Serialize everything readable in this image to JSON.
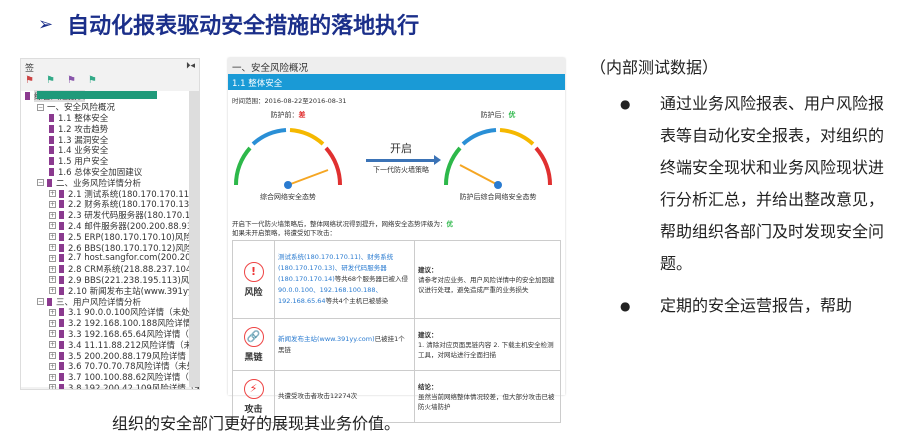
{
  "title": "自动化报表驱动安全措施的落地执行",
  "bookmarks": {
    "header": "签",
    "items": [
      {
        "label": "综合风险报表",
        "level": 0,
        "type": "root"
      },
      {
        "label": "一、安全风险概况",
        "level": 1,
        "type": "section"
      },
      {
        "label": "1.1 整体安全",
        "level": 2
      },
      {
        "label": "1.2 攻击趋势",
        "level": 2
      },
      {
        "label": "1.3 漏洞安全",
        "level": 2
      },
      {
        "label": "1.4 业务安全",
        "level": 2
      },
      {
        "label": "1.5 用户安全",
        "level": 2
      },
      {
        "label": "1.6 总体安全加固建议",
        "level": 2
      },
      {
        "label": "二、业务风险详情分析",
        "level": 1,
        "type": "section"
      },
      {
        "label": "2.1 测试系统(180.170.170.11)风险详情",
        "level": 2,
        "plus": true
      },
      {
        "label": "2.2 财务系统(180.170.170.13)风险详情",
        "level": 2,
        "plus": true
      },
      {
        "label": "2.3 研发代码服务器(180.170.170.14)风",
        "level": 2,
        "plus": true
      },
      {
        "label": "2.4 邮件服务器(200.200.88.93)风险详情",
        "level": 2,
        "plus": true
      },
      {
        "label": "2.5 ERP(180.170.170.10)风险详情（未",
        "level": 2,
        "plus": true
      },
      {
        "label": "2.6 BBS(180.170.170.12)风险详情（未",
        "level": 2,
        "plus": true
      },
      {
        "label": "2.7 host.sangfor.com(200.200.88.134",
        "level": 2,
        "plus": true
      },
      {
        "label": "2.8 CRM系统(218.88.237.104)风险详情",
        "level": 2,
        "plus": true
      },
      {
        "label": "2.9 BBS(221.238.195.113)风险详情（",
        "level": 2,
        "plus": true
      },
      {
        "label": "2.10 新闻发布主站(www.391yy.com)风",
        "level": 2,
        "plus": true
      },
      {
        "label": "三、用户风险详情分析",
        "level": 1,
        "type": "section"
      },
      {
        "label": "3.1 90.0.0.100风险详情（未处理）",
        "level": 2,
        "plus": true
      },
      {
        "label": "3.2 192.168.100.188风险详情（未处理",
        "level": 2,
        "plus": true
      },
      {
        "label": "3.3 192.168.65.64风险详情（未处理）",
        "level": 2,
        "plus": true
      },
      {
        "label": "3.4 11.11.88.212风险详情（未处理）",
        "level": 2,
        "plus": true
      },
      {
        "label": "3.5 200.200.88.179风险详情（未处理）",
        "level": 2,
        "plus": true
      },
      {
        "label": "3.6 70.70.70.78风险详情（未处理）",
        "level": 2,
        "plus": true
      },
      {
        "label": "3.7 100.100.88.62风险详情（未处理）",
        "level": 2,
        "plus": true
      },
      {
        "label": "3.8 192.200.42.109风险详情（未处理）",
        "level": 2,
        "plus": true
      },
      {
        "label": "3.9 66.55.62.117风险详情（未处理）",
        "level": 2,
        "plus": true
      }
    ]
  },
  "report": {
    "section": "一、安全风险概况",
    "subsection": "1.1 整体安全",
    "time_range": "时间范围：2016-08-22至2016-08-31",
    "gauge_before": {
      "label": "防护前：",
      "grade": "差",
      "grade_color": "#e03030",
      "caption": "综合网络安全态势",
      "segments": [
        "优",
        "良",
        "中",
        "差"
      ]
    },
    "gauge_after": {
      "label": "防护后：",
      "grade": "优",
      "grade_color": "#2db84a",
      "caption": "防护后综合网络安全态势",
      "segments": [
        "优",
        "良",
        "中",
        "差"
      ]
    },
    "arrow": {
      "big": "开启",
      "small": "下一代防火墙策略"
    },
    "summary1": "开启下一代防火墙策略后，整体网络状况得到提升，网络安全态势评级为：",
    "summary1_grade": "优",
    "summary2": "如果未开启策略，将遭受如下攻击：",
    "rows": [
      {
        "icon": "!",
        "name": "风险",
        "detail_link": "测试系统(180.170.170.11)、财务系统(180.170.170.13)、研发代码服务器(180.170.170.14)",
        "detail_text": "等共68个服务器已被入侵",
        "detail_link2": "90.0.0.100、192.168.100.188、192.168.65.64",
        "detail_text2": "等共4个主机已被感染",
        "advice_title": "建议：",
        "advice": "请参考对应业务、用户风险详情中的安全加固建议进行处理，避免造成严重的业务损失"
      },
      {
        "icon": "🔗",
        "name": "黑链",
        "detail_link": "新闻发布主站(www.391yy.com)",
        "detail_text": "已被挂1个黑链",
        "detail_link2": "",
        "detail_text2": "",
        "advice_title": "建议：",
        "advice": "1. 清除对应页面黑链内容 2. 下载主机安全检测工具，对网站进行全面扫描"
      },
      {
        "icon": "⚡",
        "name": "攻击",
        "detail_link": "",
        "detail_text": "共遭受攻击者攻击12274次",
        "detail_link2": "",
        "detail_text2": "",
        "advice_title": "结论：",
        "advice": "虽然当前网络整体情况较差，但大部分攻击已被防火墙防护"
      }
    ]
  },
  "right": {
    "note": "（内部测试数据）",
    "bullet1": "通过业务风险报表、用户风险报表等自动化安全报表，对组织的终端安全现状和业务风险现状进行分析汇总，并给出整改意见，帮助组织各部门及时发现安全问题。",
    "bullet2": "定期的安全运营报告，帮助"
  },
  "bottom": "组织的安全部门更好的展现其业务价值。"
}
